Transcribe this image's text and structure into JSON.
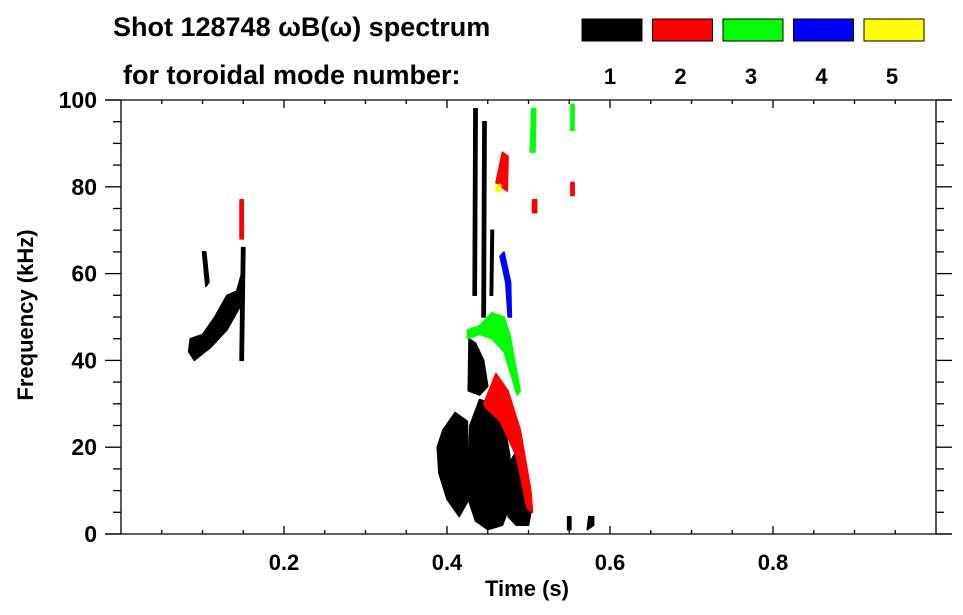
{
  "chart_data": {
    "type": "heatmap",
    "title": "Shot 128748 ωB(ω) spectrum",
    "legend_title": "for toroidal mode number:",
    "legend": [
      {
        "label": "1",
        "color": "#000000"
      },
      {
        "label": "2",
        "color": "#ff0000"
      },
      {
        "label": "3",
        "color": "#00ff00"
      },
      {
        "label": "4",
        "color": "#0000ff"
      },
      {
        "label": "5",
        "color": "#ffff00"
      }
    ],
    "legend_placement": "top",
    "xlabel": "Time (s)",
    "ylabel": "Frequency (kHz)",
    "xlim": [
      0,
      1.0
    ],
    "ylim": [
      0,
      100
    ],
    "xticks": [
      0.2,
      0.4,
      0.6,
      0.8
    ],
    "xtick_labels": [
      "0.2",
      "0.4",
      "0.6",
      "0.8"
    ],
    "yticks": [
      0,
      20,
      40,
      60,
      80,
      100
    ],
    "ytick_labels": [
      "0",
      "20",
      "40",
      "60",
      "80",
      "100"
    ],
    "grid": false,
    "regions": [
      {
        "mode": 1,
        "points": [
          [
            0.083,
            42
          ],
          [
            0.09,
            40
          ],
          [
            0.11,
            43
          ],
          [
            0.13,
            47
          ],
          [
            0.145,
            52
          ],
          [
            0.148,
            60
          ],
          [
            0.142,
            56
          ],
          [
            0.13,
            55
          ],
          [
            0.115,
            50
          ],
          [
            0.1,
            46
          ],
          [
            0.085,
            45
          ]
        ]
      },
      {
        "mode": 1,
        "points": [
          [
            0.1,
            65
          ],
          [
            0.104,
            65
          ],
          [
            0.108,
            58
          ],
          [
            0.104,
            57
          ]
        ]
      },
      {
        "mode": 1,
        "points": [
          [
            0.146,
            40
          ],
          [
            0.15,
            40
          ],
          [
            0.152,
            66
          ],
          [
            0.148,
            66
          ]
        ]
      },
      {
        "mode": 2,
        "points": [
          [
            0.146,
            68
          ],
          [
            0.15,
            68
          ],
          [
            0.15,
            77
          ],
          [
            0.146,
            77
          ]
        ]
      },
      {
        "mode": 1,
        "points": [
          [
            0.388,
            20
          ],
          [
            0.395,
            24
          ],
          [
            0.41,
            28
          ],
          [
            0.425,
            26
          ],
          [
            0.427,
            8
          ],
          [
            0.415,
            4
          ],
          [
            0.4,
            8
          ],
          [
            0.39,
            14
          ]
        ]
      },
      {
        "mode": 1,
        "points": [
          [
            0.426,
            8
          ],
          [
            0.428,
            25
          ],
          [
            0.44,
            31
          ],
          [
            0.455,
            30
          ],
          [
            0.47,
            26
          ],
          [
            0.477,
            18
          ],
          [
            0.476,
            6
          ],
          [
            0.468,
            2
          ],
          [
            0.45,
            1
          ],
          [
            0.435,
            3
          ]
        ]
      },
      {
        "mode": 1,
        "points": [
          [
            0.475,
            16
          ],
          [
            0.485,
            19
          ],
          [
            0.495,
            12
          ],
          [
            0.503,
            5
          ],
          [
            0.5,
            2
          ],
          [
            0.485,
            2
          ],
          [
            0.475,
            4
          ]
        ]
      },
      {
        "mode": 1,
        "points": [
          [
            0.426,
            33
          ],
          [
            0.427,
            45
          ],
          [
            0.435,
            44
          ],
          [
            0.445,
            40
          ],
          [
            0.45,
            34
          ],
          [
            0.44,
            32
          ]
        ]
      },
      {
        "mode": 1,
        "points": [
          [
            0.432,
            55
          ],
          [
            0.436,
            55
          ],
          [
            0.437,
            98
          ],
          [
            0.433,
            98
          ]
        ]
      },
      {
        "mode": 1,
        "points": [
          [
            0.443,
            50
          ],
          [
            0.447,
            50
          ],
          [
            0.448,
            95
          ],
          [
            0.444,
            95
          ]
        ]
      },
      {
        "mode": 1,
        "points": [
          [
            0.453,
            55
          ],
          [
            0.456,
            55
          ],
          [
            0.457,
            70
          ],
          [
            0.454,
            70
          ]
        ]
      },
      {
        "mode": 1,
        "points": [
          [
            0.548,
            1
          ],
          [
            0.552,
            1
          ],
          [
            0.552,
            4
          ],
          [
            0.548,
            4
          ]
        ]
      },
      {
        "mode": 1,
        "points": [
          [
            0.572,
            1
          ],
          [
            0.58,
            2
          ],
          [
            0.58,
            4
          ],
          [
            0.574,
            4
          ]
        ]
      },
      {
        "mode": 2,
        "points": [
          [
            0.445,
            30
          ],
          [
            0.46,
            37
          ],
          [
            0.475,
            33
          ],
          [
            0.49,
            24
          ],
          [
            0.503,
            10
          ],
          [
            0.505,
            5
          ],
          [
            0.498,
            6
          ],
          [
            0.485,
            18
          ],
          [
            0.465,
            26
          ],
          [
            0.448,
            29
          ]
        ]
      },
      {
        "mode": 2,
        "points": [
          [
            0.46,
            81
          ],
          [
            0.468,
            88
          ],
          [
            0.475,
            87
          ],
          [
            0.474,
            79
          ],
          [
            0.466,
            80
          ]
        ]
      },
      {
        "mode": 2,
        "points": [
          [
            0.505,
            74
          ],
          [
            0.51,
            74
          ],
          [
            0.51,
            77
          ],
          [
            0.505,
            77
          ]
        ]
      },
      {
        "mode": 2,
        "points": [
          [
            0.552,
            78
          ],
          [
            0.556,
            78
          ],
          [
            0.556,
            81
          ],
          [
            0.552,
            81
          ]
        ]
      },
      {
        "mode": 3,
        "points": [
          [
            0.425,
            47
          ],
          [
            0.44,
            48
          ],
          [
            0.455,
            51
          ],
          [
            0.47,
            50
          ],
          [
            0.477,
            46
          ],
          [
            0.485,
            38
          ],
          [
            0.49,
            33
          ],
          [
            0.486,
            32
          ],
          [
            0.47,
            42
          ],
          [
            0.455,
            45
          ],
          [
            0.44,
            46
          ],
          [
            0.425,
            45
          ]
        ]
      },
      {
        "mode": 3,
        "points": [
          [
            0.502,
            88
          ],
          [
            0.508,
            88
          ],
          [
            0.509,
            98
          ],
          [
            0.504,
            98
          ]
        ]
      },
      {
        "mode": 3,
        "points": [
          [
            0.552,
            93
          ],
          [
            0.556,
            93
          ],
          [
            0.556,
            99
          ],
          [
            0.552,
            99
          ]
        ]
      },
      {
        "mode": 4,
        "points": [
          [
            0.465,
            64
          ],
          [
            0.47,
            65
          ],
          [
            0.478,
            58
          ],
          [
            0.479,
            50
          ],
          [
            0.475,
            50
          ],
          [
            0.472,
            58
          ]
        ]
      },
      {
        "mode": 5,
        "points": [
          [
            0.46,
            79
          ],
          [
            0.466,
            79
          ],
          [
            0.466,
            80.5
          ],
          [
            0.46,
            80.5
          ]
        ]
      }
    ]
  }
}
